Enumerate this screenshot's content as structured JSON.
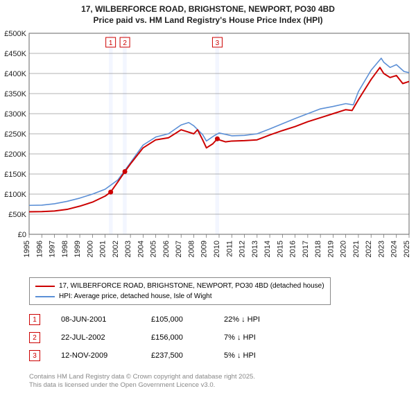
{
  "title_line1": "17, WILBERFORCE ROAD, BRIGHSTONE, NEWPORT, PO30 4BD",
  "title_line2": "Price paid vs. HM Land Registry's House Price Index (HPI)",
  "chart": {
    "type": "line",
    "background_color": "#ffffff",
    "plot_border_color": "#666666",
    "grid_color": "#666666",
    "band_color": "#f3f6ff",
    "x_min": 1995,
    "x_max": 2025,
    "y_min": 0,
    "y_max": 500000,
    "y_ticks": [
      0,
      50000,
      100000,
      150000,
      200000,
      250000,
      300000,
      350000,
      400000,
      450000,
      500000
    ],
    "y_tick_labels": [
      "£0",
      "£50K",
      "£100K",
      "£150K",
      "£200K",
      "£250K",
      "£300K",
      "£350K",
      "£400K",
      "£450K",
      "£500K"
    ],
    "x_ticks": [
      1995,
      1996,
      1997,
      1998,
      1999,
      2000,
      2001,
      2002,
      2003,
      2004,
      2005,
      2006,
      2007,
      2008,
      2009,
      2010,
      2011,
      2012,
      2013,
      2014,
      2015,
      2016,
      2017,
      2018,
      2019,
      2020,
      2021,
      2022,
      2023,
      2024,
      2025
    ],
    "axis_fontsize": 11,
    "label_color": "#222222",
    "series": [
      {
        "name": "price_paid",
        "color": "#cc0000",
        "width": 2,
        "points": [
          [
            1995,
            56000
          ],
          [
            1996,
            56500
          ],
          [
            1997,
            58000
          ],
          [
            1998,
            62000
          ],
          [
            1999,
            70000
          ],
          [
            2000,
            80000
          ],
          [
            2001,
            95000
          ],
          [
            2001.44,
            105000
          ],
          [
            2002,
            130000
          ],
          [
            2002.56,
            156000
          ],
          [
            2003,
            175000
          ],
          [
            2004,
            215000
          ],
          [
            2005,
            235000
          ],
          [
            2006,
            240000
          ],
          [
            2007,
            260000
          ],
          [
            2007.5,
            255000
          ],
          [
            2008,
            250000
          ],
          [
            2008.3,
            260000
          ],
          [
            2008.7,
            235000
          ],
          [
            2009,
            215000
          ],
          [
            2009.5,
            225000
          ],
          [
            2009.86,
            237500
          ],
          [
            2010,
            235000
          ],
          [
            2010.5,
            230000
          ],
          [
            2011,
            232000
          ],
          [
            2012,
            233000
          ],
          [
            2013,
            235000
          ],
          [
            2014,
            247000
          ],
          [
            2015,
            258000
          ],
          [
            2016,
            268000
          ],
          [
            2017,
            280000
          ],
          [
            2018,
            290000
          ],
          [
            2019,
            300000
          ],
          [
            2020,
            310000
          ],
          [
            2020.5,
            308000
          ],
          [
            2021,
            335000
          ],
          [
            2022,
            385000
          ],
          [
            2022.7,
            415000
          ],
          [
            2023,
            400000
          ],
          [
            2023.5,
            390000
          ],
          [
            2024,
            395000
          ],
          [
            2024.5,
            375000
          ],
          [
            2025,
            380000
          ]
        ]
      },
      {
        "name": "hpi",
        "color": "#5b8fd6",
        "width": 1.6,
        "points": [
          [
            1995,
            72000
          ],
          [
            1996,
            72500
          ],
          [
            1997,
            76000
          ],
          [
            1998,
            82000
          ],
          [
            1999,
            90000
          ],
          [
            2000,
            100000
          ],
          [
            2001,
            112000
          ],
          [
            2002,
            135000
          ],
          [
            2003,
            178000
          ],
          [
            2004,
            222000
          ],
          [
            2005,
            242000
          ],
          [
            2006,
            250000
          ],
          [
            2007,
            272000
          ],
          [
            2007.6,
            278000
          ],
          [
            2008,
            270000
          ],
          [
            2008.7,
            248000
          ],
          [
            2009,
            232000
          ],
          [
            2009.6,
            245000
          ],
          [
            2010,
            252000
          ],
          [
            2010.6,
            248000
          ],
          [
            2011,
            245000
          ],
          [
            2012,
            246000
          ],
          [
            2013,
            250000
          ],
          [
            2014,
            262000
          ],
          [
            2015,
            275000
          ],
          [
            2016,
            288000
          ],
          [
            2017,
            300000
          ],
          [
            2018,
            312000
          ],
          [
            2019,
            318000
          ],
          [
            2020,
            325000
          ],
          [
            2020.6,
            322000
          ],
          [
            2021,
            355000
          ],
          [
            2022,
            408000
          ],
          [
            2022.8,
            438000
          ],
          [
            2023,
            428000
          ],
          [
            2023.5,
            415000
          ],
          [
            2024,
            422000
          ],
          [
            2024.6,
            405000
          ],
          [
            2025,
            402000
          ]
        ]
      }
    ],
    "sale_markers": [
      {
        "n": "1",
        "color": "#cc0000",
        "year": 2001.44,
        "price": 105000
      },
      {
        "n": "2",
        "color": "#cc0000",
        "year": 2002.56,
        "price": 156000
      },
      {
        "n": "3",
        "color": "#cc0000",
        "year": 2009.86,
        "price": 237500
      }
    ],
    "sale_bands": [
      {
        "from": 2001.3,
        "to": 2001.6
      },
      {
        "from": 2002.4,
        "to": 2002.7
      },
      {
        "from": 2009.7,
        "to": 2010.0
      }
    ]
  },
  "legend": {
    "items": [
      {
        "color": "#cc0000",
        "label": "17, WILBERFORCE ROAD, BRIGHSTONE, NEWPORT, PO30 4BD (detached house)"
      },
      {
        "color": "#5b8fd6",
        "label": "HPI: Average price, detached house, Isle of Wight"
      }
    ]
  },
  "sales": [
    {
      "n": "1",
      "color": "#cc0000",
      "date": "08-JUN-2001",
      "price": "£105,000",
      "delta": "22% ↓ HPI"
    },
    {
      "n": "2",
      "color": "#cc0000",
      "date": "22-JUL-2002",
      "price": "£156,000",
      "delta": "7% ↓ HPI"
    },
    {
      "n": "3",
      "color": "#cc0000",
      "date": "12-NOV-2009",
      "price": "£237,500",
      "delta": "5% ↓ HPI"
    }
  ],
  "footnote_line1": "Contains HM Land Registry data © Crown copyright and database right 2025.",
  "footnote_line2": "This data is licensed under the Open Government Licence v3.0."
}
